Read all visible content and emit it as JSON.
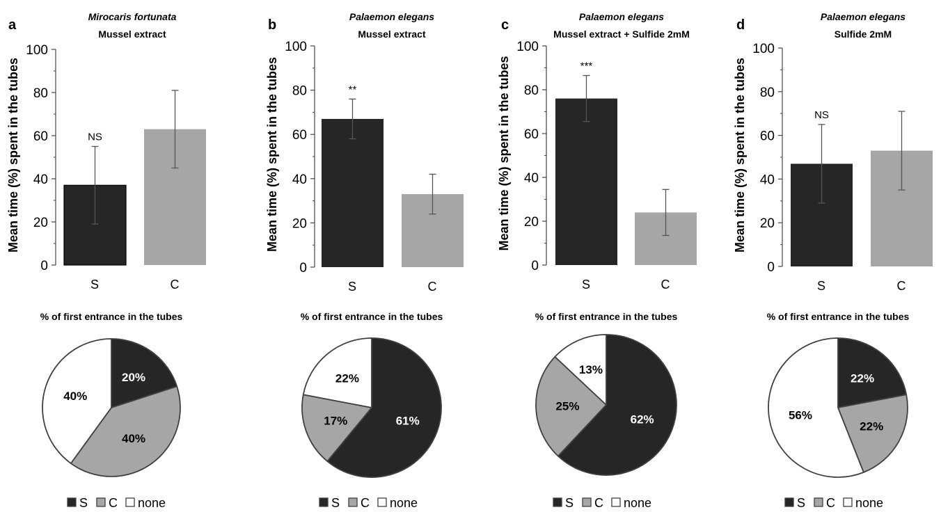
{
  "colors": {
    "S": "#262626",
    "C": "#a6a6a6",
    "none": "#ffffff",
    "axis": "#444444",
    "outline": "#404040",
    "error": "#555555"
  },
  "chart_data": [
    {
      "panel": "a",
      "type": "bar",
      "title_italic": "Mirocaris fortunata",
      "title": "Mussel extract",
      "ylabel": "Mean time (%) spent in the tubes",
      "ylim": [
        0,
        100
      ],
      "yticks": [
        "0",
        "20",
        "40",
        "60",
        "80",
        "100"
      ],
      "categories": [
        "S",
        "C"
      ],
      "values": [
        37,
        63
      ],
      "errors": [
        18,
        18
      ],
      "annotation": "NS",
      "annotation_bar": 0,
      "pie": {
        "title": "% of first entrance in the tubes",
        "slices": [
          {
            "category": "S",
            "value": 20,
            "label": "20%"
          },
          {
            "category": "C",
            "value": 40,
            "label": "40%"
          },
          {
            "category": "none",
            "value": 40,
            "label": "40%"
          }
        ]
      },
      "legend": [
        "S",
        "C",
        "none"
      ]
    },
    {
      "panel": "b",
      "type": "bar",
      "title_italic": "Palaemon elegans",
      "title": "Mussel extract",
      "ylabel": "Mean time (%) spent in the tubes",
      "ylim": [
        0,
        100
      ],
      "yticks": [
        "0",
        "20",
        "40",
        "60",
        "80",
        "100"
      ],
      "categories": [
        "S",
        "C"
      ],
      "values": [
        67,
        33
      ],
      "errors": [
        9,
        9
      ],
      "annotation": "**",
      "annotation_bar": 0,
      "pie": {
        "title": "% of first entrance in the tubes",
        "slices": [
          {
            "category": "S",
            "value": 61,
            "label": "61%"
          },
          {
            "category": "C",
            "value": 17,
            "label": "17%"
          },
          {
            "category": "none",
            "value": 22,
            "label": "22%"
          }
        ]
      },
      "legend": [
        "S",
        "C",
        "none"
      ]
    },
    {
      "panel": "c",
      "type": "bar",
      "title_italic": "Palaemon elegans",
      "title": "Mussel extract + Sulfide 2mM",
      "ylabel": "Mean time (%) spent in the tubes",
      "ylim": [
        0,
        100
      ],
      "yticks": [
        "0",
        "20",
        "40",
        "60",
        "80",
        "100"
      ],
      "categories": [
        "S",
        "C"
      ],
      "values": [
        76,
        24
      ],
      "errors": [
        10.5,
        10.5
      ],
      "annotation": "***",
      "annotation_bar": 0,
      "pie": {
        "title": "% of first entrance in the tubes",
        "slices": [
          {
            "category": "S",
            "value": 62,
            "label": "62%"
          },
          {
            "category": "C",
            "value": 25,
            "label": "25%"
          },
          {
            "category": "none",
            "value": 13,
            "label": "13%"
          }
        ]
      },
      "legend": [
        "S",
        "C",
        "none"
      ]
    },
    {
      "panel": "d",
      "type": "bar",
      "title_italic": "Palaemon elegans",
      "title": "Sulfide 2mM",
      "ylabel": "Mean time (%) spent in the tubes",
      "ylim": [
        0,
        100
      ],
      "yticks": [
        "0",
        "20",
        "40",
        "60",
        "80",
        "100"
      ],
      "categories": [
        "S",
        "C"
      ],
      "values": [
        47,
        53
      ],
      "errors": [
        18,
        18
      ],
      "annotation": "NS",
      "annotation_bar": 0,
      "pie": {
        "title": "% of first entrance in the tubes",
        "slices": [
          {
            "category": "S",
            "value": 22,
            "label": "22%"
          },
          {
            "category": "C",
            "value": 22,
            "label": "22%"
          },
          {
            "category": "none",
            "value": 56,
            "label": "56%"
          }
        ]
      },
      "legend": [
        "S",
        "C",
        "none"
      ]
    }
  ]
}
